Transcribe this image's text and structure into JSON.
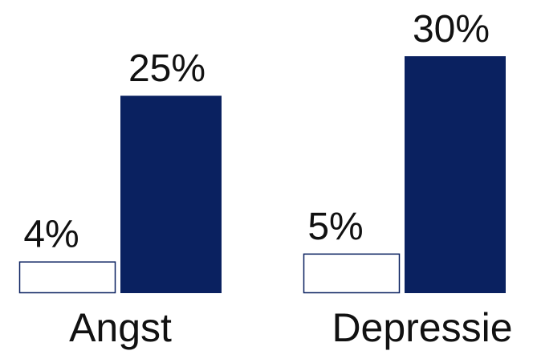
{
  "chart_data": {
    "type": "bar",
    "categories": [
      "Angst",
      "Depressie"
    ],
    "series": [
      {
        "values": [
          4,
          5
        ],
        "labels": [
          "4%",
          "5%"
        ],
        "style": "outline"
      },
      {
        "values": [
          25,
          30
        ],
        "labels": [
          "25%",
          "30%"
        ],
        "style": "filled"
      }
    ],
    "title": "",
    "xlabel": "",
    "ylabel": "",
    "ylim": [
      0,
      30
    ],
    "grid": false,
    "legend": "none",
    "colors": {
      "filled": "#0a2160",
      "outline_stroke": "#0a2160",
      "outline_fill": "#ffffff",
      "text": "#111111"
    }
  }
}
